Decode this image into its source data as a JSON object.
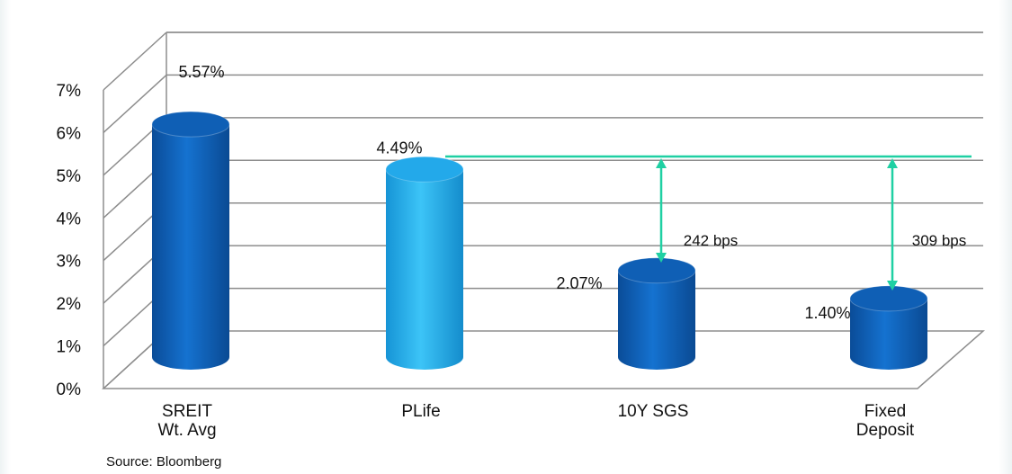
{
  "chart_data": {
    "type": "bar",
    "categories": [
      [
        "SREIT",
        "Wt. Avg"
      ],
      [
        "PLife"
      ],
      [
        "10Y SGS"
      ],
      [
        "Fixed",
        "Deposit"
      ]
    ],
    "values": [
      5.57,
      4.49,
      2.07,
      1.4
    ],
    "value_labels": [
      "5.57%",
      "4.49%",
      "2.07%",
      "1.40%"
    ],
    "y_ticks": [
      "0%",
      "1%",
      "2%",
      "3%",
      "4%",
      "5%",
      "6%",
      "7%"
    ],
    "ylim": [
      0,
      7
    ],
    "grid": true,
    "bar_colors": [
      "#0f5fb5",
      "#23a9ea",
      "#0f5fb5",
      "#0f5fb5"
    ],
    "annotations": [
      {
        "label": "242 bps",
        "from": "PLife",
        "to": "10Y SGS"
      },
      {
        "label": "309 bps",
        "from": "PLife",
        "to": "Fixed Deposit"
      }
    ],
    "annotation_color": "#1fd0a3",
    "source": "Source: Bloomberg"
  }
}
